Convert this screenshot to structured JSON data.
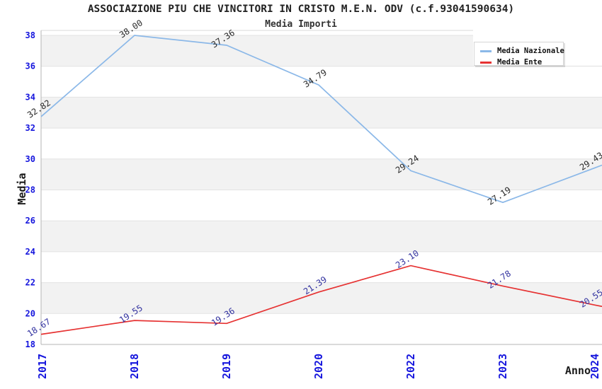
{
  "chart_data": {
    "type": "line",
    "title": "ASSOCIAZIONE PIU CHE VINCITORI IN CRISTO M.E.N. ODV (c.f.93041590634)",
    "subtitle": "Media Importi",
    "xlabel": "Anno",
    "ylabel": "Media",
    "categories": [
      "2017",
      "2018",
      "2019",
      "2020",
      "2022",
      "2023",
      "2024"
    ],
    "series": [
      {
        "name": "Media Nazionale",
        "color": "#8bb8e8",
        "label_color": "#2a2a2a",
        "values": [
          32.82,
          38.0,
          37.36,
          34.79,
          29.24,
          27.19,
          29.43
        ]
      },
      {
        "name": "Media Ente",
        "color": "#e63232",
        "label_color": "#3333a0",
        "values": [
          18.67,
          19.55,
          19.36,
          21.39,
          23.1,
          21.78,
          20.55
        ]
      }
    ],
    "ylim": [
      18,
      38
    ],
    "yticks": [
      18,
      20,
      22,
      24,
      26,
      28,
      30,
      32,
      34,
      36,
      38
    ],
    "legend_position": "top-right",
    "grid": "horizontal-bands",
    "band_color": "#f2f2f2",
    "gridline_color": "#e3e3e3",
    "axis_color": "#b5b5b5",
    "tick_color": "#1515dd"
  }
}
